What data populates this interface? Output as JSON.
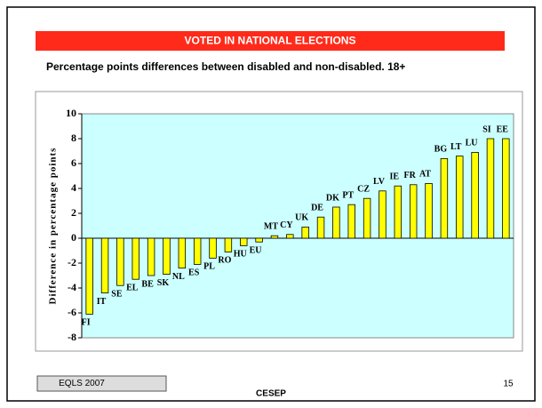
{
  "slide": {
    "title": "VOTED IN NATIONAL ELECTIONS",
    "subtitle": "Percentage points differences between disabled and non-disabled. 18+",
    "footer_left": "EQLS 2007",
    "footer_center": "CESEP",
    "page_number": "15"
  },
  "chart_data": {
    "type": "bar",
    "ylabel": "Difference in percentage points",
    "categories": [
      "FI",
      "IT",
      "SE",
      "EL",
      "BE",
      "SK",
      "NL",
      "ES",
      "PL",
      "RO",
      "HU",
      "EU",
      "MT",
      "CY",
      "UK",
      "DE",
      "DK",
      "PT",
      "CZ",
      "LV",
      "IE",
      "FR",
      "AT",
      "BG",
      "LT",
      "LU",
      "SI",
      "EE"
    ],
    "values": [
      -6.1,
      -4.4,
      -3.8,
      -3.3,
      -3.0,
      -2.9,
      -2.4,
      -2.1,
      -1.6,
      -1.1,
      -0.6,
      -0.3,
      0.2,
      0.3,
      0.9,
      1.7,
      2.5,
      2.7,
      3.2,
      3.8,
      4.2,
      4.3,
      4.4,
      6.4,
      6.6,
      6.9,
      8.0,
      8.0
    ],
    "color": "#ffff00",
    "ylim": [
      -8,
      10
    ],
    "yticks": [
      -8,
      -6,
      -4,
      -2,
      0,
      2,
      4,
      6,
      8,
      10
    ],
    "grid": false
  }
}
